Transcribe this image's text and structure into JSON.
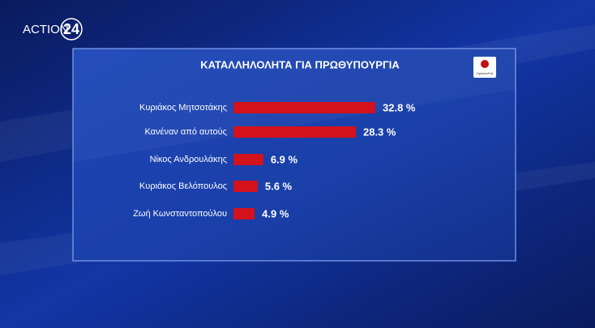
{
  "logo": {
    "channel": "ACTION",
    "number": "24"
  },
  "source": "OpinionPoll",
  "chart_data": {
    "type": "hbar",
    "title": "ΚΑΤΑΛΛΗΛΟΛΗΤΑ ΓΙΑ ΠΡΩΘΥΠΟΥΡΓΙΑ",
    "categories": [
      "Κυριάκος Μητσοτάκης",
      "Κανέναν από αυτούς",
      "Νίκος Ανδρουλάκης",
      "Κυριάκος Βελόπουλος",
      "Ζωή Κωνσταντοπούλου"
    ],
    "values": [
      32.8,
      28.3,
      6.9,
      5.6,
      4.9
    ],
    "value_labels": [
      "32.8 %",
      "28.3 %",
      "6.9 %",
      "5.6 %",
      "4.9 %"
    ],
    "color": "#d3121c"
  }
}
